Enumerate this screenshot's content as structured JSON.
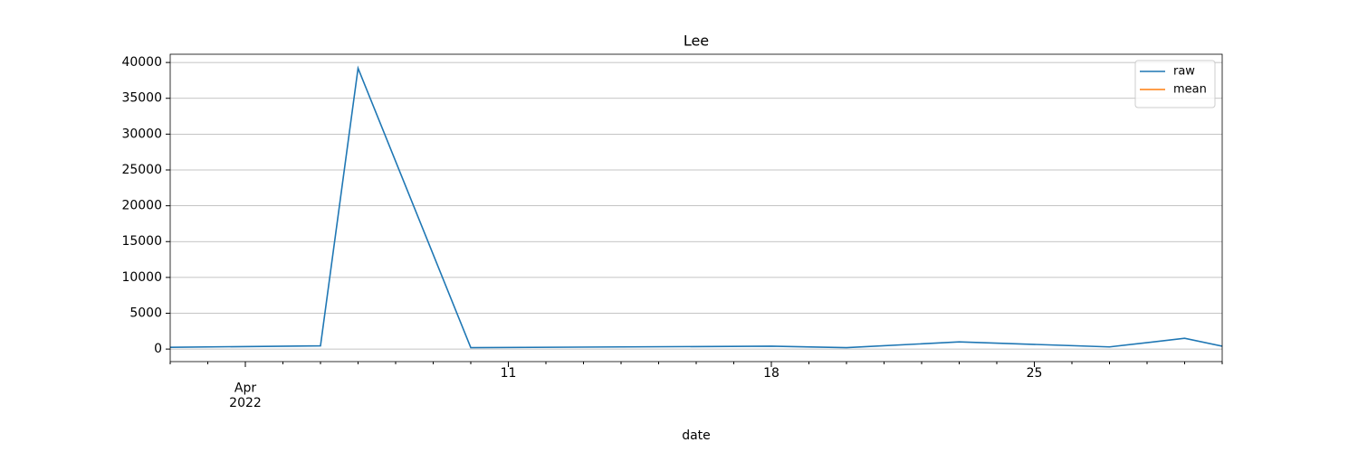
{
  "chart_data": {
    "type": "line",
    "title": "Lee",
    "x_label": "date",
    "x": [
      "2022-04-02",
      "2022-04-06",
      "2022-04-07",
      "2022-04-10",
      "2022-04-18",
      "2022-04-20",
      "2022-04-23",
      "2022-04-27",
      "2022-04-29",
      "2022-04-30"
    ],
    "series": [
      {
        "name": "raw",
        "color": "#1f77b4",
        "values": [
          250,
          450,
          39200,
          200,
          400,
          200,
          1000,
          300,
          1500,
          400
        ]
      },
      {
        "name": "mean",
        "color": "#ff7f0e",
        "values": [
          null,
          null,
          null,
          null,
          null,
          null,
          null,
          null,
          null,
          null
        ]
      }
    ],
    "xlim": [
      "2022-04-02",
      "2022-04-30"
    ],
    "xticks": [
      {
        "value": "2022-04-04",
        "label": "Apr\n2022"
      },
      {
        "value": "2022-04-11",
        "label": "11"
      },
      {
        "value": "2022-04-18",
        "label": "18"
      },
      {
        "value": "2022-04-25",
        "label": "25"
      }
    ],
    "ylim": [
      -1750,
      41150
    ],
    "yticks": [
      0,
      5000,
      10000,
      15000,
      20000,
      25000,
      30000,
      35000,
      40000
    ],
    "grid": "y",
    "legend": "upper right"
  }
}
